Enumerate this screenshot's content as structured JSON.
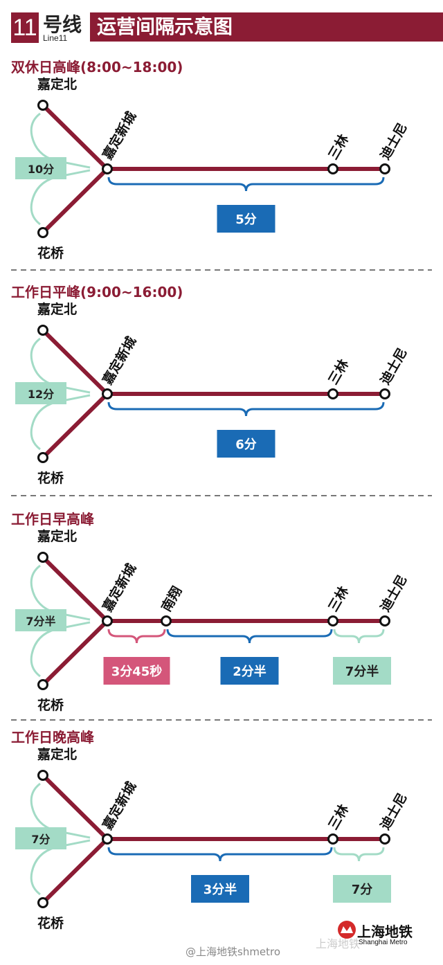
{
  "header": {
    "line_number": "11",
    "hao": "号线",
    "line_en": "Line11",
    "title": "运营间隔示意图"
  },
  "colors": {
    "line": "#8b1c34",
    "blue": "#1a6bb5",
    "green": "#a3dbc6",
    "pink": "#d4567a",
    "title": "#8b1c34"
  },
  "sections": [
    {
      "title": "双休日高峰(8:00~18:00)",
      "branch_top": "嘉定北",
      "branch_bottom": "花桥",
      "branch_interval": "10分",
      "stations": [
        "嘉定新城",
        "三林",
        "迪士尼"
      ],
      "intervals": [
        {
          "from": "嘉定新城",
          "to": "迪士尼",
          "label": "5分",
          "color": "blue"
        }
      ]
    },
    {
      "title": "工作日平峰(9:00~16:00)",
      "branch_top": "嘉定北",
      "branch_bottom": "花桥",
      "branch_interval": "12分",
      "stations": [
        "嘉定新城",
        "三林",
        "迪士尼"
      ],
      "intervals": [
        {
          "from": "嘉定新城",
          "to": "迪士尼",
          "label": "6分",
          "color": "blue"
        }
      ]
    },
    {
      "title": "工作日早高峰",
      "branch_top": "嘉定北",
      "branch_bottom": "花桥",
      "branch_interval": "7分半",
      "stations": [
        "嘉定新城",
        "南翔",
        "三林",
        "迪士尼"
      ],
      "intervals": [
        {
          "from": "嘉定新城",
          "to": "南翔",
          "label": "3分45秒",
          "color": "pink"
        },
        {
          "from": "南翔",
          "to": "三林",
          "label": "2分半",
          "color": "blue"
        },
        {
          "from": "三林",
          "to": "迪士尼",
          "label": "7分半",
          "color": "green"
        }
      ]
    },
    {
      "title": "工作日晚高峰",
      "branch_top": "嘉定北",
      "branch_bottom": "花桥",
      "branch_interval": "7分",
      "stations": [
        "嘉定新城",
        "三林",
        "迪士尼"
      ],
      "intervals": [
        {
          "from": "嘉定新城",
          "to": "三林",
          "label": "3分半",
          "color": "blue"
        },
        {
          "from": "三林",
          "to": "迪士尼",
          "label": "7分",
          "color": "green"
        }
      ]
    }
  ],
  "footer": {
    "weibo": "@上海地铁shmetro",
    "watermark": "上海地铁",
    "logo_cn": "上海地铁",
    "logo_en": "Shanghai Metro"
  }
}
